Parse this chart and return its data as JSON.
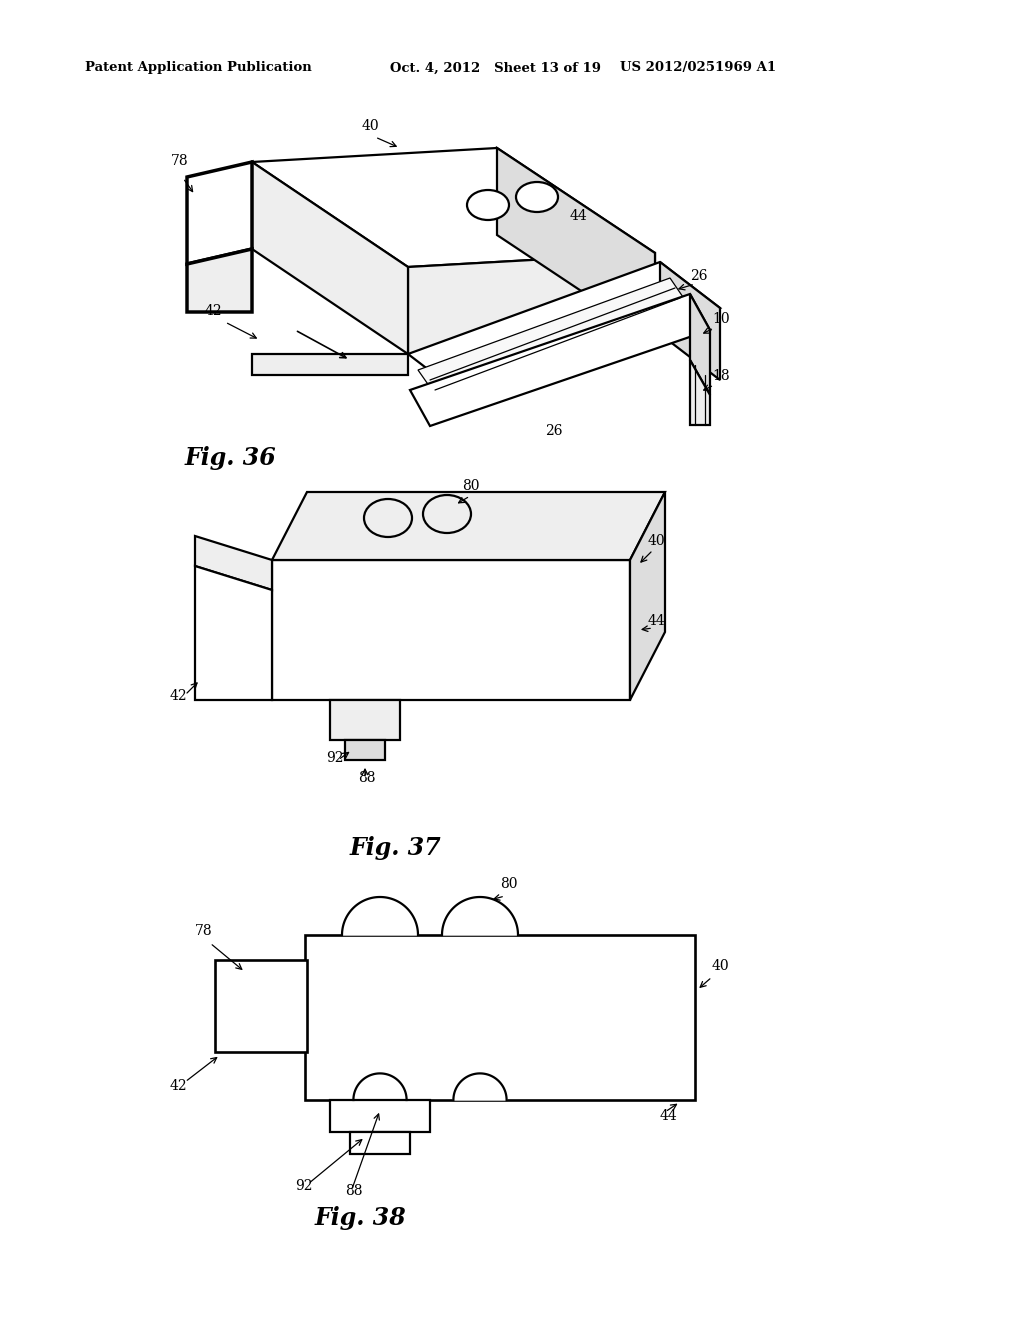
{
  "bg_color": "#ffffff",
  "header_left": "Patent Application Publication",
  "header_mid": "Oct. 4, 2012   Sheet 13 of 19",
  "header_right": "US 2012/0251969 A1",
  "fig36_label": "Fig. 36",
  "fig37_label": "Fig. 37",
  "fig38_label": "Fig. 38",
  "lc": "#000000",
  "lw": 1.6,
  "thin_lw": 0.9,
  "face_light": "#ffffff",
  "face_mid": "#eeeeee",
  "face_dark": "#dddddd"
}
